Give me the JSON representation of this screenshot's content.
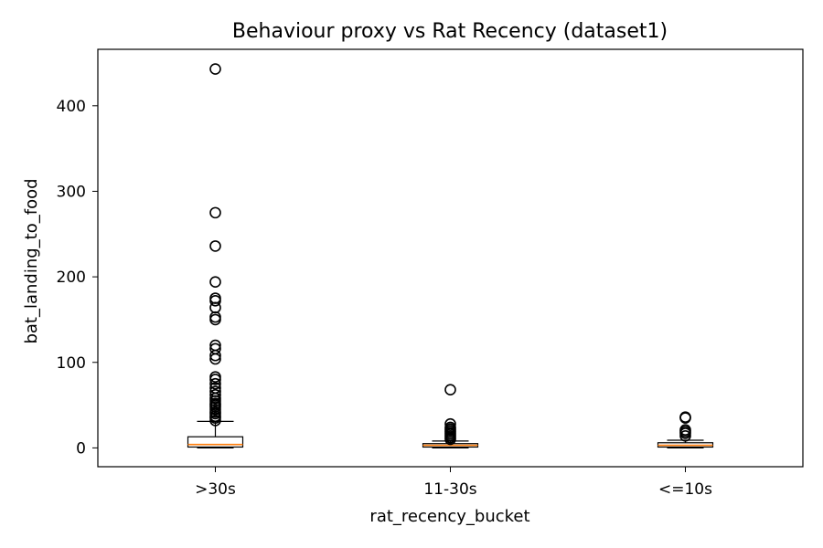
{
  "chart_data": {
    "type": "box",
    "title": "Behaviour proxy vs Rat Recency (dataset1)",
    "xlabel": "rat_recency_bucket",
    "ylabel": "bat_landing_to_food",
    "categories": [
      ">30s",
      "11-30s",
      "<=10s"
    ],
    "ylim": [
      -22,
      466
    ],
    "yticks": [
      0,
      100,
      200,
      300,
      400
    ],
    "grid": false,
    "boxes": [
      {
        "category": ">30s",
        "whisker_low": 0,
        "q1": 1,
        "median": 4,
        "q3": 13,
        "whisker_high": 31,
        "outliers": [
          32,
          35,
          37,
          40,
          42,
          45,
          48,
          50,
          52,
          55,
          58,
          62,
          66,
          70,
          75,
          80,
          83,
          104,
          108,
          116,
          120,
          150,
          153,
          164,
          172,
          175,
          194,
          236,
          275,
          443
        ]
      },
      {
        "category": "11-30s",
        "whisker_low": 0,
        "q1": 1,
        "median": 3,
        "q3": 5,
        "whisker_high": 8,
        "outliers": [
          10,
          12,
          14,
          16,
          18,
          20,
          22,
          24,
          28,
          68
        ]
      },
      {
        "category": "<=10s",
        "whisker_low": 0,
        "q1": 1,
        "median": 3,
        "q3": 6,
        "whisker_high": 9,
        "outliers": [
          14,
          17,
          19,
          21,
          35,
          36
        ]
      }
    ]
  },
  "colors": {
    "box": "#000000",
    "median": "#ff7f0e",
    "flier": "#000000",
    "background": "#ffffff"
  }
}
